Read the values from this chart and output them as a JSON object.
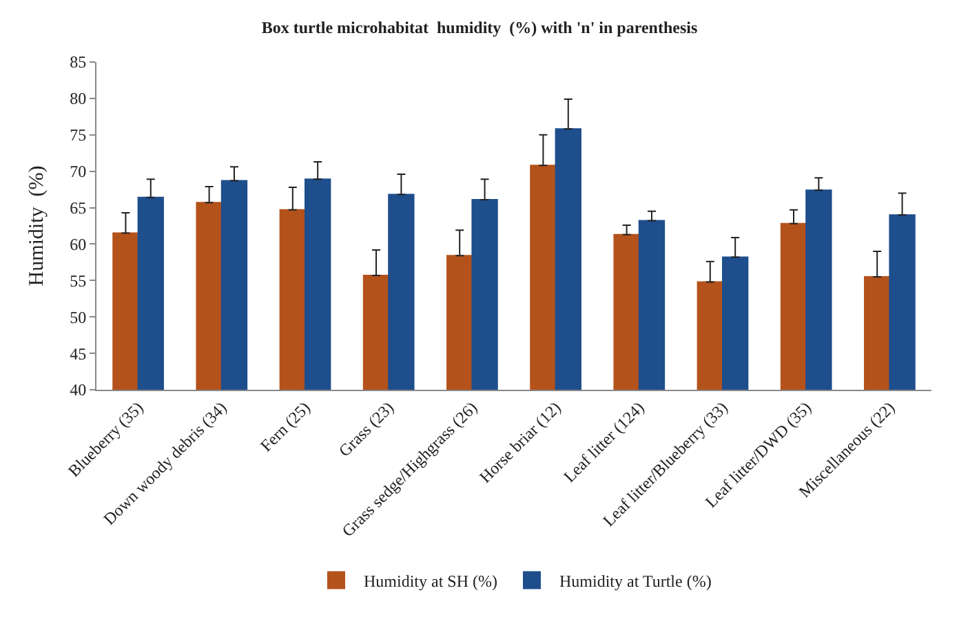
{
  "chart_data": {
    "type": "bar",
    "title": "Box turtle microhabitat  humidity  (%) with 'n' in parenthesis",
    "ylabel": "Humidity  (%)",
    "categories": [
      "Blueberry (35)",
      "Down woody debris (34)",
      "Fern (25)",
      "Grass (23)",
      "Grass sedge/Highgrass (26)",
      "Horse briar (12)",
      "Leaf litter (124)",
      "Leaf litter/Blueberry (33)",
      "Leaf litter/DWD (35)",
      "Miscellaneous (22)"
    ],
    "series": [
      {
        "name": "Humidity at SH (%)",
        "color": "#b4521c",
        "values": [
          61.5,
          65.7,
          64.7,
          55.7,
          58.4,
          70.8,
          61.3,
          54.8,
          62.8,
          55.5
        ],
        "errors": [
          [
            61.5,
            64.3
          ],
          [
            65.7,
            67.9
          ],
          [
            64.7,
            67.8
          ],
          [
            55.7,
            59.2
          ],
          [
            58.4,
            61.9
          ],
          [
            70.8,
            75.0
          ],
          [
            61.3,
            62.6
          ],
          [
            54.8,
            57.6
          ],
          [
            62.8,
            64.7
          ],
          [
            55.5,
            59.0
          ]
        ]
      },
      {
        "name": "Humidity at Turtle (%)",
        "color": "#1f4e8c",
        "values": [
          66.4,
          68.7,
          68.9,
          66.8,
          66.1,
          75.8,
          63.2,
          58.2,
          67.4,
          64.0
        ],
        "errors": [
          [
            66.4,
            68.9
          ],
          [
            68.7,
            70.6
          ],
          [
            68.9,
            71.3
          ],
          [
            66.8,
            69.6
          ],
          [
            66.1,
            68.9
          ],
          [
            75.8,
            79.9
          ],
          [
            63.2,
            64.5
          ],
          [
            58.2,
            60.9
          ],
          [
            67.4,
            69.1
          ],
          [
            64.0,
            67.0
          ]
        ]
      }
    ],
    "ylim": [
      40,
      85
    ],
    "yticks": [
      40,
      45,
      50,
      55,
      60,
      65,
      70,
      75,
      80,
      85
    ],
    "legend": "bottom"
  }
}
